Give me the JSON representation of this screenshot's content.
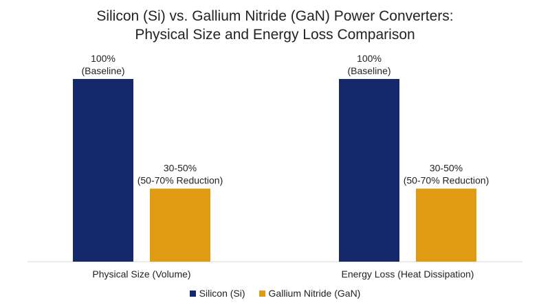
{
  "chart_data": {
    "type": "bar",
    "title_lines": [
      "Silicon (Si) vs. Gallium Nitride (GaN) Power Converters:",
      "Physical Size and Energy Loss Comparison"
    ],
    "categories": [
      "Physical Size (Volume)",
      "Energy Loss (Heat Dissipation)"
    ],
    "series": [
      {
        "name": "Silicon (Si)",
        "color": "#13296b",
        "values": [
          100,
          100
        ],
        "labels": [
          [
            "100%",
            "(Baseline)"
          ],
          [
            "100%",
            "(Baseline)"
          ]
        ]
      },
      {
        "name": "Gallium Nitride (GaN)",
        "color": "#df9c13",
        "values": [
          40,
          40
        ],
        "labels": [
          [
            "30-50%",
            "(50-70% Reduction)"
          ],
          [
            "30-50%",
            "(50-70% Reduction)"
          ]
        ]
      }
    ],
    "ylim": [
      0,
      100
    ],
    "xlabel": "",
    "ylabel": "",
    "grid": false,
    "legend_position": "bottom-center"
  }
}
